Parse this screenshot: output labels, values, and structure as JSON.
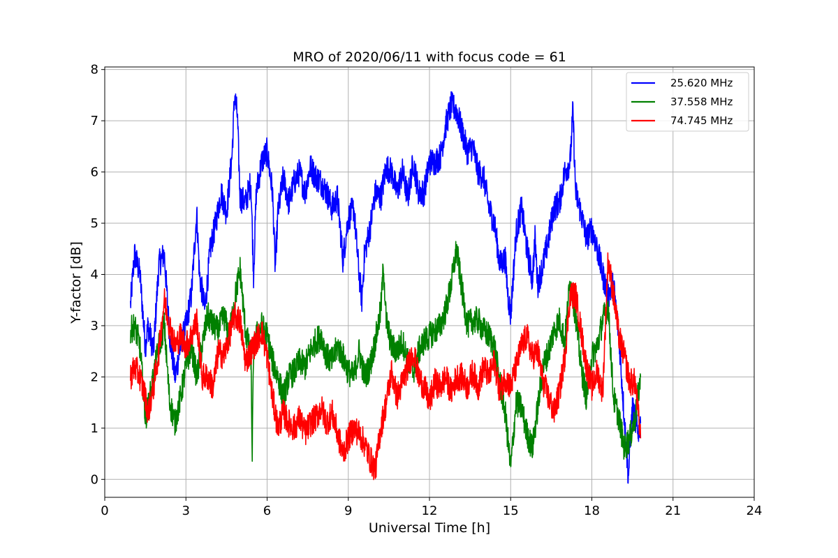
{
  "chart_data": {
    "type": "line",
    "title": "MRO of 2020/06/11 with focus code = 61",
    "xlabel": "Universal Time [h]",
    "ylabel": "Y-factor [dB]",
    "xlim": [
      0,
      24
    ],
    "ylim": [
      -0.35,
      8.05
    ],
    "xticks": [
      0,
      3,
      6,
      9,
      12,
      15,
      18,
      21,
      24
    ],
    "yticks": [
      0,
      1,
      2,
      3,
      4,
      5,
      6,
      7,
      8
    ],
    "grid": true,
    "legend_position": "top-right",
    "series": [
      {
        "name": "25.620 MHz",
        "color": "#0000ff",
        "x": [
          0.95,
          1.1,
          1.3,
          1.5,
          1.6,
          1.8,
          2.0,
          2.2,
          2.4,
          2.6,
          2.8,
          3.0,
          3.2,
          3.4,
          3.5,
          3.7,
          3.9,
          4.1,
          4.3,
          4.5,
          4.7,
          4.8,
          4.9,
          5.0,
          5.2,
          5.4,
          5.5,
          5.6,
          5.8,
          6.0,
          6.2,
          6.3,
          6.4,
          6.6,
          6.8,
          7.0,
          7.2,
          7.4,
          7.6,
          7.8,
          8.0,
          8.2,
          8.4,
          8.6,
          8.8,
          9.0,
          9.2,
          9.4,
          9.5,
          9.6,
          9.8,
          10.0,
          10.2,
          10.4,
          10.6,
          10.8,
          11.0,
          11.2,
          11.4,
          11.6,
          11.8,
          12.0,
          12.2,
          12.4,
          12.6,
          12.8,
          13.0,
          13.2,
          13.4,
          13.6,
          13.8,
          14.0,
          14.2,
          14.4,
          14.6,
          14.8,
          14.9,
          15.0,
          15.2,
          15.4,
          15.6,
          15.8,
          15.9,
          16.0,
          16.2,
          16.4,
          16.6,
          16.8,
          17.0,
          17.2,
          17.3,
          17.4,
          17.6,
          17.8,
          18.0,
          18.2,
          18.4,
          18.6,
          18.8,
          19.0,
          19.2,
          19.35,
          19.5,
          19.7,
          19.8
        ],
        "y": [
          3.4,
          4.4,
          4.0,
          2.6,
          3.0,
          2.5,
          4.2,
          4.4,
          2.8,
          2.0,
          2.6,
          3.0,
          3.6,
          5.2,
          4.0,
          3.3,
          4.5,
          5.0,
          5.6,
          5.2,
          6.3,
          7.5,
          7.1,
          5.5,
          5.4,
          5.8,
          4.0,
          5.6,
          6.2,
          6.4,
          5.6,
          4.1,
          5.2,
          5.9,
          5.4,
          5.8,
          6.0,
          5.6,
          6.1,
          5.9,
          5.8,
          5.6,
          5.3,
          5.5,
          4.3,
          5.1,
          5.3,
          4.0,
          3.5,
          4.4,
          4.9,
          5.6,
          5.5,
          6.1,
          6.0,
          5.6,
          6.0,
          5.5,
          6.2,
          5.6,
          5.6,
          6.2,
          6.2,
          6.3,
          6.9,
          7.3,
          7.2,
          6.8,
          6.4,
          6.5,
          6.0,
          5.9,
          5.3,
          5.0,
          4.2,
          4.3,
          3.6,
          3.2,
          4.8,
          5.3,
          4.5,
          3.9,
          4.7,
          3.8,
          4.2,
          4.7,
          5.3,
          5.4,
          6.0,
          6.2,
          7.2,
          5.6,
          5.2,
          4.7,
          4.9,
          4.5,
          4.0,
          3.6,
          3.8,
          2.8,
          1.2,
          0.05,
          1.4,
          0.9,
          1.1
        ]
      },
      {
        "name": "37.558 MHz",
        "color": "#008000",
        "x": [
          0.95,
          1.1,
          1.3,
          1.5,
          1.6,
          1.8,
          2.0,
          2.2,
          2.4,
          2.6,
          2.8,
          3.0,
          3.2,
          3.4,
          3.6,
          3.8,
          4.0,
          4.2,
          4.4,
          4.6,
          4.8,
          5.0,
          5.2,
          5.4,
          5.45,
          5.5,
          5.6,
          5.8,
          6.0,
          6.2,
          6.4,
          6.6,
          6.8,
          7.0,
          7.2,
          7.4,
          7.6,
          7.8,
          8.0,
          8.2,
          8.4,
          8.6,
          8.8,
          9.0,
          9.2,
          9.4,
          9.6,
          9.8,
          10.0,
          10.2,
          10.3,
          10.4,
          10.6,
          10.8,
          11.0,
          11.2,
          11.4,
          11.6,
          11.8,
          12.0,
          12.2,
          12.4,
          12.6,
          12.8,
          13.0,
          13.2,
          13.4,
          13.6,
          13.8,
          14.0,
          14.2,
          14.4,
          14.6,
          14.8,
          15.0,
          15.2,
          15.4,
          15.6,
          15.8,
          16.0,
          16.2,
          16.4,
          16.6,
          16.8,
          17.0,
          17.2,
          17.4,
          17.6,
          17.8,
          18.0,
          18.2,
          18.4,
          18.6,
          18.8,
          19.0,
          19.2,
          19.4,
          19.6,
          19.8
        ],
        "y": [
          2.9,
          3.0,
          2.6,
          1.2,
          1.4,
          2.0,
          2.6,
          3.0,
          1.5,
          1.1,
          1.6,
          2.2,
          2.6,
          2.0,
          2.6,
          3.2,
          3.0,
          2.9,
          3.2,
          2.8,
          3.5,
          4.1,
          2.9,
          2.4,
          0.5,
          2.5,
          2.8,
          3.0,
          2.8,
          2.3,
          2.0,
          1.6,
          2.0,
          2.1,
          2.3,
          2.2,
          2.5,
          2.7,
          2.8,
          2.4,
          2.3,
          2.6,
          2.4,
          2.1,
          2.0,
          2.5,
          2.0,
          2.2,
          2.7,
          3.3,
          4.2,
          3.1,
          2.6,
          2.5,
          2.7,
          2.3,
          2.1,
          2.5,
          2.7,
          2.8,
          2.9,
          3.0,
          3.3,
          3.8,
          4.5,
          3.7,
          3.0,
          3.1,
          3.1,
          2.9,
          2.8,
          2.6,
          1.9,
          1.3,
          0.2,
          1.5,
          1.4,
          0.9,
          0.6,
          1.4,
          2.2,
          2.5,
          2.9,
          3.1,
          2.7,
          3.9,
          3.2,
          2.2,
          1.6,
          2.4,
          2.6,
          3.1,
          3.4,
          1.6,
          1.2,
          0.6,
          0.8,
          1.2,
          2.0
        ]
      },
      {
        "name": "74.745 MHz",
        "color": "#ff0000",
        "x": [
          0.95,
          1.1,
          1.3,
          1.5,
          1.6,
          1.8,
          2.0,
          2.2,
          2.4,
          2.6,
          2.8,
          3.0,
          3.2,
          3.4,
          3.6,
          3.8,
          4.0,
          4.2,
          4.4,
          4.6,
          4.8,
          5.0,
          5.2,
          5.4,
          5.6,
          5.8,
          6.0,
          6.2,
          6.4,
          6.6,
          6.8,
          7.0,
          7.2,
          7.4,
          7.6,
          7.8,
          8.0,
          8.2,
          8.4,
          8.6,
          8.8,
          9.0,
          9.2,
          9.4,
          9.6,
          9.8,
          10.0,
          10.2,
          10.4,
          10.6,
          10.8,
          11.0,
          11.2,
          11.4,
          11.6,
          11.8,
          12.0,
          12.2,
          12.4,
          12.6,
          12.8,
          13.0,
          13.2,
          13.4,
          13.6,
          13.8,
          14.0,
          14.2,
          14.4,
          14.6,
          14.8,
          15.0,
          15.2,
          15.4,
          15.6,
          15.8,
          16.0,
          16.2,
          16.4,
          16.6,
          16.8,
          17.0,
          17.2,
          17.4,
          17.6,
          17.8,
          18.0,
          18.2,
          18.4,
          18.6,
          18.8,
          19.0,
          19.2,
          19.4,
          19.6,
          19.8
        ],
        "y": [
          2.0,
          2.2,
          2.0,
          1.6,
          1.3,
          1.8,
          2.5,
          3.5,
          3.0,
          2.6,
          2.8,
          2.6,
          2.8,
          3.1,
          2.0,
          2.0,
          1.8,
          2.5,
          2.4,
          2.8,
          3.2,
          3.1,
          2.3,
          2.5,
          2.7,
          2.9,
          2.4,
          1.6,
          1.0,
          1.3,
          1.1,
          1.0,
          1.2,
          0.9,
          1.1,
          1.2,
          1.4,
          1.1,
          1.3,
          0.9,
          0.5,
          0.8,
          1.0,
          0.9,
          0.7,
          0.4,
          0.2,
          1.0,
          1.5,
          2.1,
          1.6,
          1.9,
          2.2,
          2.5,
          2.0,
          1.8,
          1.5,
          1.9,
          1.8,
          2.0,
          1.7,
          2.0,
          2.0,
          1.8,
          2.1,
          1.8,
          2.2,
          2.0,
          2.3,
          1.7,
          2.0,
          1.8,
          2.2,
          2.6,
          2.8,
          2.4,
          2.5,
          1.9,
          1.6,
          1.3,
          1.7,
          2.4,
          3.6,
          3.6,
          2.9,
          2.2,
          1.8,
          2.1,
          1.7,
          4.3,
          3.6,
          2.8,
          2.4,
          1.9,
          1.9,
          0.8
        ]
      }
    ]
  }
}
